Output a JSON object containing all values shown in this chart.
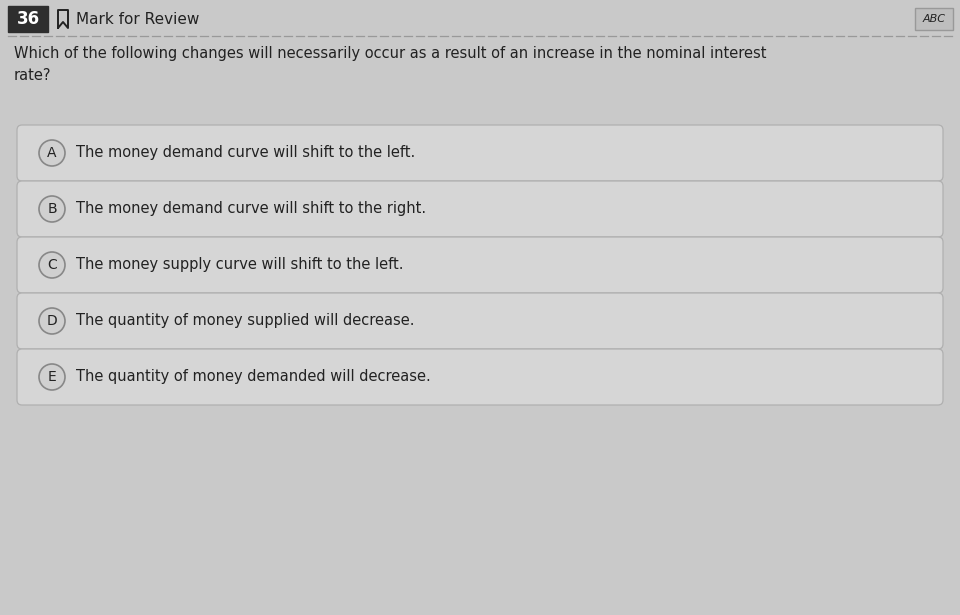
{
  "question_number": "36",
  "header_text": "Mark for Review",
  "question_text": "Which of the following changes will necessarily occur as a result of an increase in the nominal interest\nrate?",
  "options": [
    {
      "label": "A",
      "text": "The money demand curve will shift to the left."
    },
    {
      "label": "B",
      "text": "The money demand curve will shift to the right."
    },
    {
      "label": "C",
      "text": "The money supply curve will shift to the left."
    },
    {
      "label": "D",
      "text": "The quantity of money supplied will decrease."
    },
    {
      "label": "E",
      "text": "The quantity of money demanded will decrease."
    }
  ],
  "bg_color": "#c9c9c9",
  "question_number_bg": "#2e2e2e",
  "question_number_color": "#ffffff",
  "option_box_bg": "#d6d6d6",
  "option_box_border": "#b0b0b0",
  "option_label_circle_bg": "#d0d0d0",
  "option_label_circle_border": "#888888",
  "text_color": "#222222",
  "header_line_color": "#999999",
  "font_size_question": 10.5,
  "font_size_option": 10.5,
  "font_size_header": 11,
  "font_size_number": 12,
  "abc_box_bg": "#bebebe",
  "abc_box_border": "#999999",
  "abc_text": "ABC"
}
